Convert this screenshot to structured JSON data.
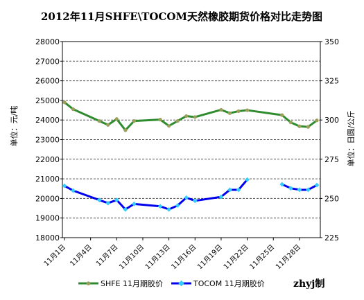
{
  "chart_data": {
    "type": "line",
    "title": "2012年11月SHFE\\TOCOM天然橡胶期货价格对比走势图",
    "ylabel_left": "单位：元/吨",
    "ylabel_right": "单位：日圆/公斤",
    "y_left_range": [
      18000,
      28000
    ],
    "y_left_ticks": [
      "28000",
      "27000",
      "26000",
      "25000",
      "24000",
      "23000",
      "22000",
      "21000",
      "20000",
      "19000",
      "18000"
    ],
    "y_right_range": [
      225,
      350
    ],
    "y_right_ticks": [
      "350",
      "325",
      "300",
      "275",
      "250",
      "225"
    ],
    "x": [
      "11月1日",
      "11月2日",
      "11月5日",
      "11月6日",
      "11月7日",
      "11月8日",
      "11月9日",
      "11月12日",
      "11月13日",
      "11月14日",
      "11月15日",
      "11月16日",
      "11月19日",
      "11月20日",
      "11月21日",
      "11月22日",
      "11月23日",
      "11月26日",
      "11月27日",
      "11月28日",
      "11月29日",
      "11月30日"
    ],
    "x_tick_labels": [
      "11月1日",
      "11月4日",
      "11月7日",
      "11月10日",
      "11月13日",
      "11月16日",
      "11月19日",
      "11月22日",
      "11月25日",
      "11月28日"
    ],
    "grid": true,
    "legend_position": "bottom",
    "series": [
      {
        "name": "SHFE  11月期胶价",
        "axis": "left",
        "color": "#2e8b2e",
        "marker_color": "#9aa05a",
        "points": [
          {
            "day": 1,
            "value": 24900
          },
          {
            "day": 2,
            "value": 24550
          },
          {
            "day": 5,
            "value": 23950
          },
          {
            "day": 6,
            "value": 23750
          },
          {
            "day": 7,
            "value": 24050
          },
          {
            "day": 8,
            "value": 23480
          },
          {
            "day": 9,
            "value": 23950
          },
          {
            "day": 12,
            "value": 24020
          },
          {
            "day": 13,
            "value": 23700
          },
          {
            "day": 14,
            "value": 23950
          },
          {
            "day": 15,
            "value": 24200
          },
          {
            "day": 16,
            "value": 24150
          },
          {
            "day": 19,
            "value": 24520
          },
          {
            "day": 20,
            "value": 24350
          },
          {
            "day": 21,
            "value": 24450
          },
          {
            "day": 22,
            "value": 24500
          },
          {
            "day": 26,
            "value": 24250
          },
          {
            "day": 27,
            "value": 23880
          },
          {
            "day": 28,
            "value": 23680
          },
          {
            "day": 29,
            "value": 23650
          },
          {
            "day": 30,
            "value": 23980
          }
        ]
      },
      {
        "name": "TOCOM  11月期胶价",
        "axis": "right",
        "color": "#0000ee",
        "marker_color": "#33ccff",
        "segments": [
          [
            {
              "day": 1,
              "value": 258
            },
            {
              "day": 2,
              "value": 255
            },
            {
              "day": 5,
              "value": 249
            },
            {
              "day": 6,
              "value": 247
            },
            {
              "day": 7,
              "value": 249
            },
            {
              "day": 8,
              "value": 243
            },
            {
              "day": 9,
              "value": 246.5
            },
            {
              "day": 12,
              "value": 245
            },
            {
              "day": 13,
              "value": 243
            },
            {
              "day": 14,
              "value": 245.5
            },
            {
              "day": 15,
              "value": 250.5
            },
            {
              "day": 16,
              "value": 248.5
            },
            {
              "day": 19,
              "value": 251
            },
            {
              "day": 20,
              "value": 255.5
            },
            {
              "day": 21,
              "value": 255.5
            },
            {
              "day": 22,
              "value": 262
            }
          ],
          [
            {
              "day": 26,
              "value": 259
            },
            {
              "day": 27,
              "value": 256.5
            },
            {
              "day": 28,
              "value": 255.5
            },
            {
              "day": 29,
              "value": 255.5
            },
            {
              "day": 30,
              "value": 258.5
            }
          ]
        ]
      }
    ],
    "credit": "zhyj制"
  }
}
